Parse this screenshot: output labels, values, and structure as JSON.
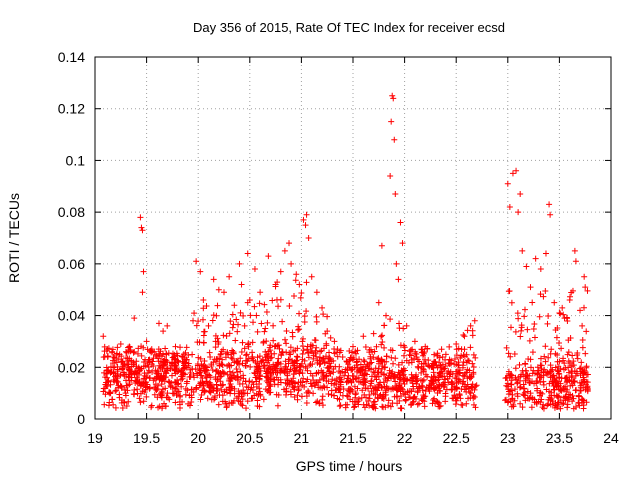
{
  "chart_data": {
    "type": "scatter",
    "title": "Day 356 of 2015, Rate Of TEC Index for receiver ecsd",
    "xlabel": "GPS time / hours",
    "ylabel": "ROTI / TECUs",
    "xlim": [
      19,
      24
    ],
    "ylim": [
      0,
      0.14
    ],
    "x_ticks": [
      "19",
      "19.5",
      "20",
      "20.5",
      "21",
      "21.5",
      "22",
      "22.5",
      "23",
      "23.5",
      "24"
    ],
    "y_ticks": [
      "0",
      "0.02",
      "0.04",
      "0.06",
      "0.08",
      "0.1",
      "0.12",
      "0.14"
    ],
    "grid": true,
    "marker": "+",
    "series_color": "#ff0000",
    "data_gap": [
      22.7,
      22.97
    ],
    "series": [
      {
        "name": "ROTI",
        "points": [
          [
            19.08,
            0.032
          ],
          [
            19.12,
            0.027
          ],
          [
            19.18,
            0.024
          ],
          [
            19.25,
            0.029
          ],
          [
            19.3,
            0.026
          ],
          [
            19.38,
            0.039
          ],
          [
            19.44,
            0.078
          ],
          [
            19.45,
            0.074
          ],
          [
            19.46,
            0.073
          ],
          [
            19.47,
            0.057
          ],
          [
            19.46,
            0.049
          ],
          [
            19.5,
            0.03
          ],
          [
            19.55,
            0.027
          ],
          [
            19.62,
            0.037
          ],
          [
            19.66,
            0.034
          ],
          [
            19.7,
            0.036
          ],
          [
            19.78,
            0.028
          ],
          [
            19.85,
            0.024
          ],
          [
            19.95,
            0.038
          ],
          [
            19.98,
            0.061
          ],
          [
            20.02,
            0.057
          ],
          [
            20.05,
            0.046
          ],
          [
            20.1,
            0.036
          ],
          [
            20.15,
            0.054
          ],
          [
            20.2,
            0.05
          ],
          [
            20.25,
            0.049
          ],
          [
            20.3,
            0.055
          ],
          [
            20.35,
            0.044
          ],
          [
            20.4,
            0.06
          ],
          [
            20.42,
            0.052
          ],
          [
            20.45,
            0.036
          ],
          [
            20.48,
            0.064
          ],
          [
            20.5,
            0.046
          ],
          [
            20.55,
            0.058
          ],
          [
            20.6,
            0.049
          ],
          [
            20.65,
            0.035
          ],
          [
            20.68,
            0.063
          ],
          [
            20.75,
            0.052
          ],
          [
            20.8,
            0.057
          ],
          [
            20.84,
            0.065
          ],
          [
            20.88,
            0.068
          ],
          [
            20.9,
            0.06
          ],
          [
            20.95,
            0.056
          ],
          [
            20.98,
            0.052
          ],
          [
            21.02,
            0.077
          ],
          [
            21.04,
            0.075
          ],
          [
            21.05,
            0.079
          ],
          [
            21.07,
            0.07
          ],
          [
            21.1,
            0.055
          ],
          [
            21.15,
            0.049
          ],
          [
            21.2,
            0.043
          ],
          [
            21.25,
            0.034
          ],
          [
            21.32,
            0.03
          ],
          [
            21.4,
            0.024
          ],
          [
            21.5,
            0.028
          ],
          [
            21.6,
            0.032
          ],
          [
            21.7,
            0.033
          ],
          [
            21.75,
            0.045
          ],
          [
            21.78,
            0.067
          ],
          [
            21.82,
            0.04
          ],
          [
            21.86,
            0.094
          ],
          [
            21.87,
            0.115
          ],
          [
            21.88,
            0.125
          ],
          [
            21.89,
            0.124
          ],
          [
            21.9,
            0.108
          ],
          [
            21.91,
            0.087
          ],
          [
            21.92,
            0.06
          ],
          [
            21.94,
            0.054
          ],
          [
            21.96,
            0.076
          ],
          [
            21.98,
            0.068
          ],
          [
            22.02,
            0.036
          ],
          [
            22.1,
            0.03
          ],
          [
            22.2,
            0.028
          ],
          [
            22.3,
            0.022
          ],
          [
            22.4,
            0.025
          ],
          [
            22.5,
            0.029
          ],
          [
            22.58,
            0.032
          ],
          [
            22.64,
            0.036
          ],
          [
            22.68,
            0.038
          ],
          [
            23.0,
            0.091
          ],
          [
            23.02,
            0.082
          ],
          [
            23.05,
            0.095
          ],
          [
            23.08,
            0.096
          ],
          [
            23.1,
            0.08
          ],
          [
            23.12,
            0.087
          ],
          [
            23.14,
            0.065
          ],
          [
            23.18,
            0.059
          ],
          [
            23.22,
            0.051
          ],
          [
            23.27,
            0.062
          ],
          [
            23.32,
            0.058
          ],
          [
            23.37,
            0.064
          ],
          [
            23.4,
            0.083
          ],
          [
            23.41,
            0.079
          ],
          [
            23.45,
            0.045
          ],
          [
            23.5,
            0.041
          ],
          [
            23.55,
            0.039
          ],
          [
            23.6,
            0.046
          ],
          [
            23.65,
            0.065
          ],
          [
            23.66,
            0.061
          ],
          [
            23.7,
            0.042
          ],
          [
            23.72,
            0.036
          ],
          [
            23.74,
            0.055
          ],
          [
            23.75,
            0.051
          ]
        ]
      }
    ]
  }
}
